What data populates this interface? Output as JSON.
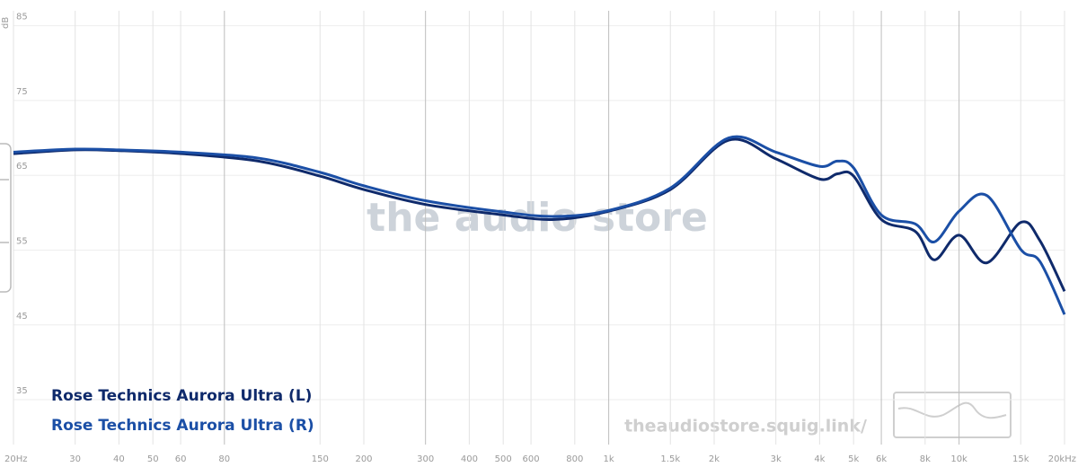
{
  "chart_data": {
    "type": "line",
    "xscale": "log",
    "grid": true,
    "ylabel": "dB",
    "watermark": "the audio store",
    "url": "theaudiostore.squig.link/",
    "xlim": [
      20,
      20000
    ],
    "ylim": [
      29,
      87
    ],
    "xticks": [
      {
        "value": 20,
        "label": "20Hz"
      },
      30,
      40,
      50,
      60,
      80,
      150,
      200,
      300,
      400,
      500,
      600,
      800,
      {
        "value": 1000,
        "label": "1k"
      },
      {
        "value": 1500,
        "label": "1.5k"
      },
      {
        "value": 2000,
        "label": "2k"
      },
      {
        "value": 3000,
        "label": "3k"
      },
      {
        "value": 4000,
        "label": "4k"
      },
      {
        "value": 5000,
        "label": "5k"
      },
      {
        "value": 6000,
        "label": "6k"
      },
      {
        "value": 8000,
        "label": "8k"
      },
      {
        "value": 10000,
        "label": "10k"
      },
      {
        "value": 15000,
        "label": "15k"
      },
      {
        "value": 20000,
        "label": "20kHz"
      }
    ],
    "yticks": [
      35,
      45,
      55,
      65,
      75,
      85
    ],
    "x": [
      20,
      30,
      40,
      60,
      100,
      150,
      200,
      300,
      500,
      700,
      1000,
      1500,
      2200,
      3000,
      4000,
      4500,
      5000,
      6000,
      7500,
      8500,
      10000,
      12000,
      15000,
      17000,
      20000
    ],
    "series": [
      {
        "name": "Rose Technics Aurora Ultra (L)",
        "color": "#0f2a6b",
        "values": [
          67.9,
          68.4,
          68.3,
          67.9,
          66.9,
          64.9,
          63.1,
          61.1,
          59.7,
          59.1,
          60.2,
          63.1,
          69.7,
          67.2,
          64.5,
          65.2,
          64.9,
          59.1,
          57.5,
          53.7,
          57.0,
          53.3,
          58.7,
          56.3,
          49.5
        ]
      },
      {
        "name": "Rose Technics Aurora Ultra (R)",
        "color": "#1b4fa6",
        "values": [
          68.1,
          68.5,
          68.4,
          68.1,
          67.3,
          65.4,
          63.6,
          61.6,
          60.1,
          59.5,
          60.3,
          63.3,
          70.0,
          68.1,
          66.2,
          66.9,
          66.0,
          59.7,
          58.5,
          56.1,
          60.2,
          62.3,
          55.1,
          53.5,
          46.4
        ]
      }
    ]
  }
}
